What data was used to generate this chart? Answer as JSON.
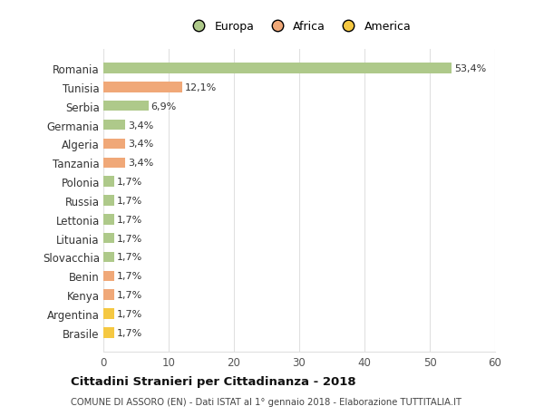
{
  "countries": [
    "Romania",
    "Tunisia",
    "Serbia",
    "Germania",
    "Algeria",
    "Tanzania",
    "Polonia",
    "Russia",
    "Lettonia",
    "Lituania",
    "Slovacchia",
    "Benin",
    "Kenya",
    "Argentina",
    "Brasile"
  ],
  "values": [
    53.4,
    12.1,
    6.9,
    3.4,
    3.4,
    3.4,
    1.7,
    1.7,
    1.7,
    1.7,
    1.7,
    1.7,
    1.7,
    1.7,
    1.7
  ],
  "labels": [
    "53,4%",
    "12,1%",
    "6,9%",
    "3,4%",
    "3,4%",
    "3,4%",
    "1,7%",
    "1,7%",
    "1,7%",
    "1,7%",
    "1,7%",
    "1,7%",
    "1,7%",
    "1,7%",
    "1,7%"
  ],
  "colors": [
    "#aec98a",
    "#f0a878",
    "#aec98a",
    "#aec98a",
    "#f0a878",
    "#f0a878",
    "#aec98a",
    "#aec98a",
    "#aec98a",
    "#aec98a",
    "#aec98a",
    "#f0a878",
    "#f0a878",
    "#f5c842",
    "#f5c842"
  ],
  "legend_labels": [
    "Europa",
    "Africa",
    "America"
  ],
  "legend_colors": [
    "#aec98a",
    "#f0a878",
    "#f5c842"
  ],
  "title": "Cittadini Stranieri per Cittadinanza - 2018",
  "subtitle": "COMUNE DI ASSORO (EN) - Dati ISTAT al 1° gennaio 2018 - Elaborazione TUTTITALIA.IT",
  "xlim": [
    0,
    60
  ],
  "xticks": [
    0,
    10,
    20,
    30,
    40,
    50,
    60
  ],
  "background_color": "#ffffff",
  "grid_color": "#e0e0e0"
}
